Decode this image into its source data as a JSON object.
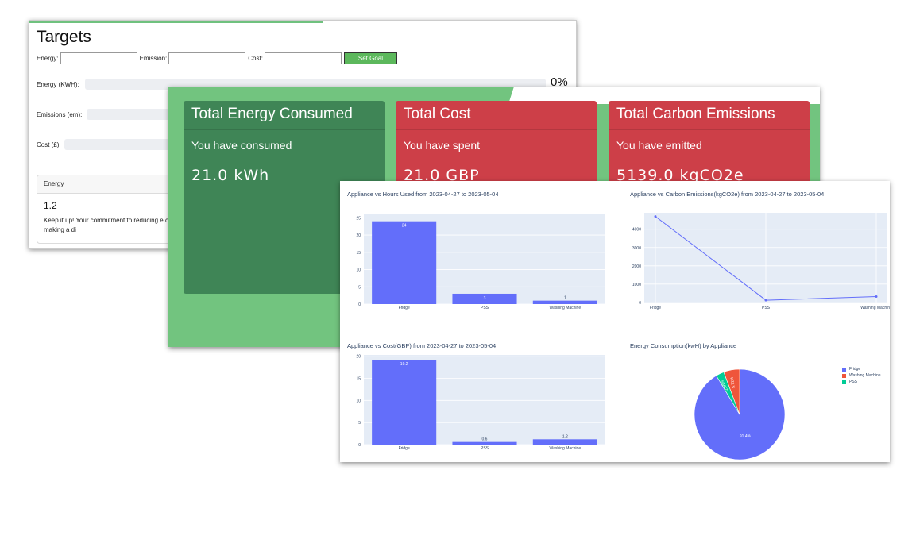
{
  "targets": {
    "title": "Targets",
    "energy_label": "Energy:",
    "emission_label": "Emission:",
    "cost_label": "Cost:",
    "set_goal": "Set Goal",
    "progress": [
      {
        "label": "Energy (KWH):",
        "value": 0
      },
      {
        "label": "Emissions (em):",
        "value": 0
      },
      {
        "label": "Cost (£):",
        "value": 0
      }
    ],
    "energy_percent": "0%",
    "card": {
      "header": "Energy",
      "value": "1.2",
      "message": "Keep it up! Your commitment to reducing e consumption is admirable and making a di"
    }
  },
  "summary": {
    "energy": {
      "title": "Total Energy Consumed",
      "subtitle": "You have consumed",
      "value": "21.0 kWh"
    },
    "cost": {
      "title": "Total Cost",
      "subtitle": "You have spent",
      "value": "21.0 GBP"
    },
    "emissions": {
      "title": "Total Carbon Emissions",
      "subtitle": "You have emitted",
      "value": "5139.0 kgCO2e"
    }
  },
  "colors": {
    "green_bg": "#72c47f",
    "green_card": "#3f8556",
    "red_card": "#cd3f48",
    "plot_bg": "#e5ecf6",
    "series": "#636efa",
    "pie_red": "#ef553b",
    "pie_green": "#00cc96"
  },
  "chart_data": [
    {
      "type": "bar",
      "title": "Appliance vs Hours Used from 2023-04-27 to 2023-05-04",
      "categories": [
        "Fridge",
        "PSS",
        "Washing Machine"
      ],
      "values": [
        24,
        3,
        1
      ],
      "value_labels": [
        "24",
        "3",
        "1"
      ],
      "ylim": [
        0,
        26
      ],
      "yticks": [
        0,
        5,
        10,
        15,
        20,
        25
      ]
    },
    {
      "type": "line",
      "title": "Appliance vs Carbon Emissions(kgCO2e) from 2023-04-27 to 2023-05-04",
      "categories": [
        "Fridge",
        "PSS",
        "Washing Machine"
      ],
      "values": [
        4700,
        120,
        320
      ],
      "ylim": [
        -50,
        4900
      ],
      "yticks": [
        0,
        1000,
        2000,
        3000,
        4000
      ]
    },
    {
      "type": "bar",
      "title": "Appliance vs Cost(GBP) from 2023-04-27 to 2023-05-04",
      "categories": [
        "Fridge",
        "PSS",
        "Washing Machine"
      ],
      "values": [
        19.2,
        0.6,
        1.2
      ],
      "value_labels": [
        "19.2",
        "0.6",
        "1.2"
      ],
      "ylim": [
        0,
        20.3
      ],
      "yticks": [
        0,
        5,
        10,
        15,
        20
      ]
    },
    {
      "type": "pie",
      "title": "Energy Consumption(kwH) by Appliance",
      "labels": [
        "Fridge",
        "Washing Machine",
        "PSS"
      ],
      "values": [
        91.4,
        5.7,
        2.9
      ],
      "slice_labels": [
        "91.4%",
        "5.71%",
        "2.86%"
      ]
    }
  ]
}
